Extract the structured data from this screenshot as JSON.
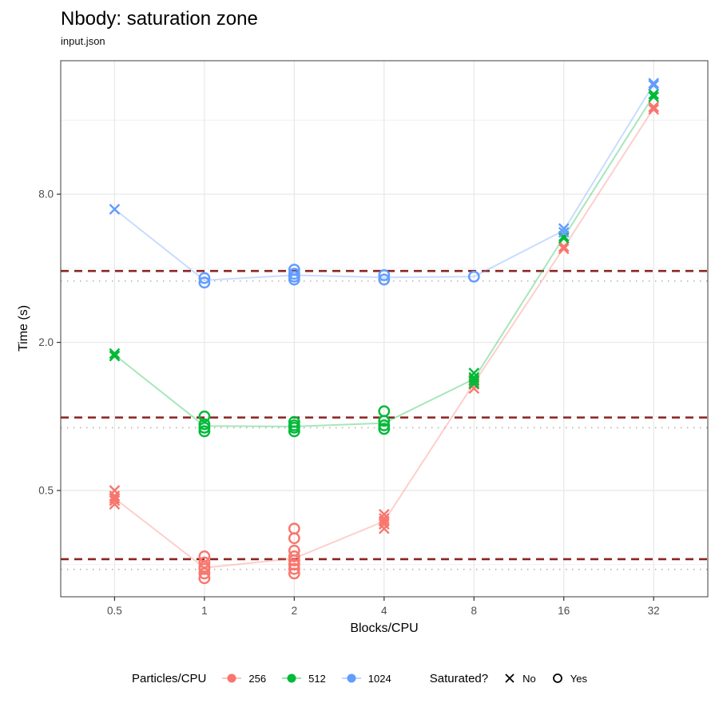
{
  "page": {
    "title": "Nbody: saturation zone",
    "subtitle": "input.json"
  },
  "axes": {
    "x_title": "Blocks/CPU",
    "y_title": "Time (s)"
  },
  "legend": {
    "color_title": "Particles/CPU",
    "color_entries": [
      {
        "label": "256",
        "color": "#f8766d"
      },
      {
        "label": "512",
        "color": "#00ba38"
      },
      {
        "label": "1024",
        "color": "#619cff"
      }
    ],
    "shape_title": "Saturated?",
    "shape_entries": [
      {
        "label": "No",
        "marker": "x"
      },
      {
        "label": "Yes",
        "marker": "circle"
      }
    ]
  },
  "chart_data": {
    "type": "scatter",
    "title": "Nbody: saturation zone",
    "subtitle": "input.json",
    "xlabel": "Blocks/CPU",
    "ylabel": "Time (s)",
    "x_scale": "log2",
    "y_scale": "log2",
    "xlim": [
      0.33,
      48.6
    ],
    "ylim": [
      0.185,
      27.9
    ],
    "x_ticks": [
      0.5,
      1,
      2,
      4,
      8,
      16,
      32
    ],
    "y_ticks": [
      {
        "value": 8,
        "label": "8.0"
      },
      {
        "value": 2,
        "label": "2.0"
      },
      {
        "value": 0.5,
        "label": "0.5"
      }
    ],
    "y_minor_gridlines": [
      0.25,
      1,
      4,
      16
    ],
    "grid": true,
    "legend_position": "bottom",
    "marker_legend": {
      "x": "No (not saturated)",
      "circle": "Yes (saturated)"
    },
    "reference_line_style": {
      "dashed_color": "#8b2424",
      "dotted_color": "#b3b3b3"
    },
    "series": [
      {
        "name": "256",
        "color": "#f8766d",
        "threshold_dashed_y": 0.263,
        "baseline_dotted_y": 0.239,
        "groups": [
          {
            "x": 0.5,
            "saturated": false,
            "times": [
              0.5,
              0.475,
              0.465,
              0.455,
              0.44
            ]
          },
          {
            "x": 1,
            "saturated": true,
            "times": [
              0.27,
              0.255,
              0.245,
              0.24,
              0.23,
              0.22
            ]
          },
          {
            "x": 2,
            "saturated": true,
            "times": [
              0.35,
              0.32,
              0.285,
              0.27,
              0.26,
              0.25,
              0.24,
              0.23
            ]
          },
          {
            "x": 4,
            "saturated": false,
            "times": [
              0.4,
              0.385,
              0.375,
              0.365,
              0.35
            ]
          },
          {
            "x": 8,
            "saturated": false,
            "times": [
              1.42,
              1.38,
              1.35,
              1.3
            ]
          },
          {
            "x": 16,
            "saturated": false,
            "times": [
              4.9,
              4.8
            ]
          },
          {
            "x": 32,
            "saturated": false,
            "times": [
              18.1,
              17.7
            ]
          }
        ]
      },
      {
        "name": "512",
        "color": "#00ba38",
        "threshold_dashed_y": 0.99,
        "baseline_dotted_y": 0.9,
        "groups": [
          {
            "x": 0.5,
            "saturated": false,
            "times": [
              1.8,
              1.76
            ]
          },
          {
            "x": 1,
            "saturated": true,
            "times": [
              1.0,
              0.93,
              0.9,
              0.87
            ]
          },
          {
            "x": 2,
            "saturated": true,
            "times": [
              0.95,
              0.92,
              0.9,
              0.87
            ]
          },
          {
            "x": 4,
            "saturated": true,
            "times": [
              1.05,
              0.96,
              0.92,
              0.89
            ]
          },
          {
            "x": 8,
            "saturated": false,
            "times": [
              1.5,
              1.44,
              1.4,
              1.36
            ]
          },
          {
            "x": 16,
            "saturated": false,
            "times": [
              5.4,
              5.3
            ]
          },
          {
            "x": 32,
            "saturated": false,
            "times": [
              20.4,
              19.9
            ]
          }
        ]
      },
      {
        "name": "1024",
        "color": "#619cff",
        "threshold_dashed_y": 3.9,
        "baseline_dotted_y": 3.55,
        "groups": [
          {
            "x": 0.5,
            "saturated": false,
            "times": [
              6.95
            ]
          },
          {
            "x": 1,
            "saturated": true,
            "times": [
              3.65,
              3.5
            ]
          },
          {
            "x": 2,
            "saturated": true,
            "times": [
              3.95,
              3.8,
              3.7,
              3.6
            ]
          },
          {
            "x": 4,
            "saturated": true,
            "times": [
              3.75,
              3.6
            ]
          },
          {
            "x": 8,
            "saturated": true,
            "times": [
              3.7
            ]
          },
          {
            "x": 16,
            "saturated": false,
            "times": [
              5.8,
              5.6
            ]
          },
          {
            "x": 32,
            "saturated": false,
            "times": [
              22.6,
              22.2
            ]
          }
        ]
      }
    ]
  }
}
